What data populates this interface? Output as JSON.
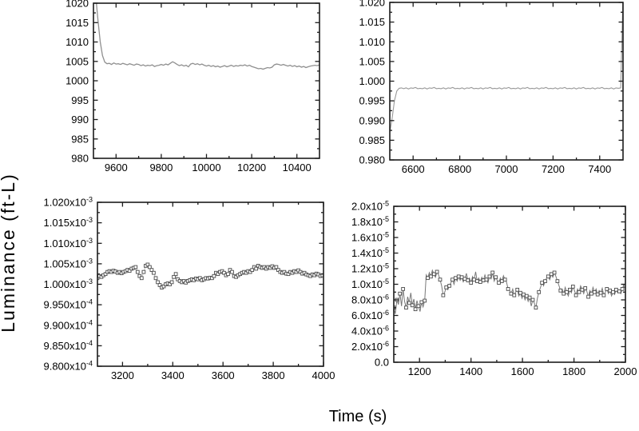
{
  "figure": {
    "y_label": "Luminance (ft-L)",
    "x_label": "Time (s)",
    "background": "#ffffff",
    "frame_color": "#1c1c1c",
    "text_color": "#000000"
  },
  "chart_data": [
    {
      "id": "top-left",
      "type": "line",
      "marker": "none",
      "line_color": "#8f8f8f",
      "line_width": 1.3,
      "xlim": [
        9500,
        10500
      ],
      "ylim": [
        980,
        1020
      ],
      "xticks": [
        9600,
        9800,
        10000,
        10200,
        10400
      ],
      "xtick_labels": [
        "9600",
        "9800",
        "10000",
        "10200",
        "10400"
      ],
      "ytick_values": [
        1020,
        1015,
        1010,
        1005,
        1000,
        995,
        990,
        985,
        980
      ],
      "ytick_labels": [
        "1020",
        "1015",
        "1010",
        "1005",
        "1000",
        "995",
        "990",
        "985",
        "980"
      ],
      "x0": 9500,
      "dx": 10,
      "y_scale": 1,
      "y": [
        1030,
        1022,
        1015.5,
        1010,
        1006.5,
        1004.8,
        1004.4,
        1004.5,
        1004.2,
        1004.6,
        1004.3,
        1004.4,
        1004.2,
        1004.5,
        1004.3,
        1004.1,
        1004.4,
        1004.2,
        1004.0,
        1004.3,
        1004.2,
        1003.9,
        1004.1,
        1003.8,
        1004.0,
        1003.9,
        1004.1,
        1003.7,
        1003.9,
        1004.0,
        1004.2,
        1004.0,
        1004.3,
        1004.1,
        1004.5,
        1004.9,
        1004.6,
        1004.2,
        1003.9,
        1004.1,
        1003.8,
        1004.0,
        1003.6,
        1004.3,
        1004.5,
        1004.2,
        1004.4,
        1004.1,
        1004.3,
        1004.0,
        1003.8,
        1004.0,
        1003.7,
        1003.9,
        1003.6,
        1003.8,
        1003.5,
        1003.7,
        1003.9,
        1003.6,
        1003.8,
        1004.0,
        1003.7,
        1003.9,
        1003.8,
        1004.0,
        1003.9,
        1004.1,
        1003.8,
        1004.0,
        1003.7,
        1003.5,
        1003.3,
        1003.1,
        1003.2,
        1003.0,
        1003.2,
        1003.4,
        1003.3,
        1003.5,
        1004.1,
        1004.3,
        1004.2,
        1004.0,
        1004.2,
        1004.0,
        1003.8,
        1004.0,
        1003.7,
        1003.9,
        1003.6,
        1003.8,
        1003.5,
        1003.7,
        1003.4,
        1003.6,
        1003.8,
        1003.9,
        1004.0,
        1003.9,
        1004.1
      ]
    },
    {
      "id": "top-right",
      "type": "line",
      "marker": "none",
      "line_color": "#999999",
      "line_width": 1.1,
      "xlim": [
        6500,
        7500
      ],
      "ylim": [
        0.98,
        1.02
      ],
      "xticks": [
        6600,
        6800,
        7000,
        7200,
        7400
      ],
      "xtick_labels": [
        "6600",
        "6800",
        "7000",
        "7200",
        "7400"
      ],
      "ytick_values": [
        1.02,
        1.015,
        1.01,
        1.005,
        1.0,
        0.995,
        0.99,
        0.985,
        0.98
      ],
      "ytick_labels": [
        "1.020",
        "1.015",
        "1.010",
        "1.005",
        "1.000",
        "0.995",
        "0.990",
        "0.985",
        "0.980"
      ],
      "x0": 6500,
      "dx": 10,
      "y_scale": 1,
      "y": [
        0.987,
        0.9905,
        0.995,
        0.9975,
        0.9982,
        0.9983,
        0.9981,
        0.9983,
        0.998,
        0.9983,
        0.9982,
        0.9984,
        0.9981,
        0.9982,
        0.9981,
        0.9983,
        0.998,
        0.9983,
        0.9982,
        0.9984,
        0.9981,
        0.9982,
        0.9981,
        0.9983,
        0.998,
        0.9983,
        0.9982,
        0.9984,
        0.9981,
        0.9982,
        0.9981,
        0.9983,
        0.998,
        0.9983,
        0.9982,
        0.9984,
        0.9981,
        0.9982,
        0.9981,
        0.9983,
        0.998,
        0.9983,
        0.9982,
        0.9984,
        0.9981,
        0.9982,
        0.9981,
        0.9983,
        0.998,
        0.9983,
        0.9982,
        0.9984,
        0.9981,
        0.9982,
        0.9981,
        0.9983,
        0.998,
        0.9983,
        0.9982,
        0.9984,
        0.9981,
        0.9982,
        0.9981,
        0.9983,
        0.998,
        0.9983,
        0.9982,
        0.9984,
        0.9981,
        0.9982,
        0.9981,
        0.9983,
        0.998,
        0.9983,
        0.9982,
        0.9984,
        0.9981,
        0.9982,
        0.9981,
        0.9983,
        0.998,
        0.9983,
        0.9982,
        0.9984,
        0.9981,
        0.9982,
        0.9981,
        0.9983,
        0.998,
        0.9983,
        0.9982,
        0.9984,
        0.9981,
        0.9982,
        0.9981,
        0.9983,
        0.998,
        0.9983,
        0.9982,
        0.9983,
        1.022
      ]
    },
    {
      "id": "bottom-left",
      "type": "scatter-line",
      "marker": "square",
      "marker_every": 1,
      "marker_size": 3.8,
      "marker_color": "#4a4a4a",
      "line_color": "#b5b5b5",
      "line_width": 0.9,
      "xlim": [
        3100,
        4000
      ],
      "ylim": [
        0.00098,
        0.00102
      ],
      "xticks": [
        3200,
        3400,
        3600,
        3800,
        4000
      ],
      "xtick_labels": [
        "3200",
        "3400",
        "3600",
        "3800",
        "4000"
      ],
      "ytick_values": [
        0.00102,
        0.001015,
        0.00101,
        0.001005,
        0.001,
        0.000995,
        0.00099,
        0.000985,
        0.00098
      ],
      "ytick_labels": [
        "1.020x10^-3",
        "1.015x10^-3",
        "1.010x10^-3",
        "1.005x10^-3",
        "1.000x10^-3",
        "9.950x10^-4",
        "9.900x10^-4",
        "9.850x10^-4",
        "9.800x10^-4"
      ],
      "x0": 3100,
      "dx": 8,
      "y_scale": 0.001,
      "y": [
        1.0015,
        1.002,
        1.0018,
        1.0022,
        1.0025,
        1.003,
        1.0032,
        1.003,
        1.0033,
        1.0031,
        1.0028,
        1.003,
        1.0027,
        1.003,
        1.0032,
        1.0035,
        1.0033,
        1.0038,
        1.004,
        1.0042,
        1.003,
        1.002,
        1.0015,
        1.003,
        1.0045,
        1.0048,
        1.0042,
        1.0035,
        1.0028,
        1.0015,
        1.0005,
        0.9998,
        0.9992,
        0.9995,
        1.0,
        1.0002,
        1.0,
        1.0005,
        1.0018,
        1.0025,
        1.0012,
        1.0008,
        1.0005,
        1.0008,
        1.0004,
        1.0008,
        1.001,
        1.0012,
        1.001,
        1.0014,
        1.0012,
        1.0015,
        1.001,
        1.0012,
        1.0015,
        1.0014,
        1.0016,
        1.0015,
        1.002,
        1.0028,
        1.0025,
        1.003,
        1.0032,
        1.0028,
        1.0022,
        1.0025,
        1.0035,
        1.003,
        1.002,
        1.0018,
        1.0022,
        1.0025,
        1.0028,
        1.003,
        1.0028,
        1.0032,
        1.003,
        1.0035,
        1.0042,
        1.0038,
        1.0045,
        1.0042,
        1.004,
        1.0042,
        1.0038,
        1.0042,
        1.004,
        1.0044,
        1.004,
        1.0042,
        1.0035,
        1.003,
        1.0028,
        1.003,
        1.0026,
        1.0025,
        1.003,
        1.0028,
        1.0032,
        1.003,
        1.0034,
        1.003,
        1.0026,
        1.0028,
        1.0024,
        1.0022,
        1.002,
        1.0024,
        1.0022,
        1.0026,
        1.0024,
        1.002,
        1.0022
      ]
    },
    {
      "id": "bottom-right",
      "type": "scatter-line",
      "marker": "square",
      "marker_every": 2,
      "marker_size": 3.8,
      "marker_color": "#4a4a4a",
      "line_color": "#787878",
      "line_width": 1,
      "xlim": [
        1100,
        2000
      ],
      "ylim": [
        0,
        2e-05
      ],
      "xticks": [
        1200,
        1400,
        1600,
        1800,
        2000
      ],
      "xtick_labels": [
        "1200",
        "1400",
        "1600",
        "1800",
        "2000"
      ],
      "ytick_values": [
        2e-05,
        1.8e-05,
        1.6e-05,
        1.4e-05,
        1.2e-05,
        1e-05,
        8e-06,
        6e-06,
        4e-06,
        2e-06,
        0
      ],
      "ytick_labels": [
        "2.0x10^-5",
        "1.8x10^-5",
        "1.6x10^-5",
        "1.4x10^-5",
        "1.2x10^-5",
        "1.0x10^-5",
        "8.0x10^-6",
        "6.0x10^-6",
        "4.0x10^-6",
        "2.0x10^-6",
        "0.0"
      ],
      "x0": 1100,
      "dx": 6,
      "y_scale": 1e-06,
      "y": [
        7.0,
        6.2,
        8.0,
        7.4,
        8.8,
        7.2,
        9.4,
        7.8,
        7.0,
        8.4,
        7.6,
        8.9,
        7.3,
        8.1,
        6.8,
        7.9,
        7.2,
        6.5,
        7.7,
        7.1,
        7.9,
        11.2,
        10.8,
        11.5,
        11.0,
        11.8,
        11.3,
        10.9,
        11.6,
        11.2,
        10.6,
        9.8,
        8.6,
        9.0,
        9.6,
        9.3,
        9.8,
        10.2,
        10.6,
        10.0,
        10.8,
        10.4,
        11.0,
        10.5,
        10.9,
        10.3,
        10.7,
        11.4,
        10.5,
        10.8,
        10.2,
        11.0,
        10.6,
        11.6,
        10.4,
        10.8,
        10.3,
        10.9,
        10.5,
        11.2,
        10.6,
        10.2,
        11.0,
        10.7,
        11.5,
        10.4,
        10.9,
        10.5,
        10.2,
        10.8,
        10.4,
        11.1,
        10.6,
        10.3,
        9.4,
        9.2,
        8.8,
        9.4,
        8.6,
        9.0,
        9.3,
        8.5,
        8.9,
        8.2,
        8.7,
        8.0,
        8.5,
        7.8,
        8.3,
        7.2,
        8.0,
        7.6,
        7.0,
        8.2,
        9.0,
        9.6,
        10.2,
        9.8,
        10.4,
        10.8,
        11.0,
        10.6,
        11.3,
        10.9,
        11.5,
        11.0,
        10.4,
        9.8,
        9.2,
        9.4,
        8.8,
        9.6,
        9.0,
        8.5,
        9.3,
        8.9,
        9.7,
        9.2,
        8.6,
        9.4,
        9.0,
        9.8,
        9.3,
        8.8,
        9.5,
        9.1,
        8.4,
        9.2,
        8.8,
        9.6,
        9.0,
        9.4,
        8.7,
        9.2,
        8.9,
        9.5,
        8.6,
        9.0,
        9.4,
        8.8,
        9.2,
        8.5,
        9.0,
        8.7,
        9.3,
        8.9,
        9.1,
        8.8,
        9.4,
        10.0,
        9.8
      ]
    }
  ]
}
